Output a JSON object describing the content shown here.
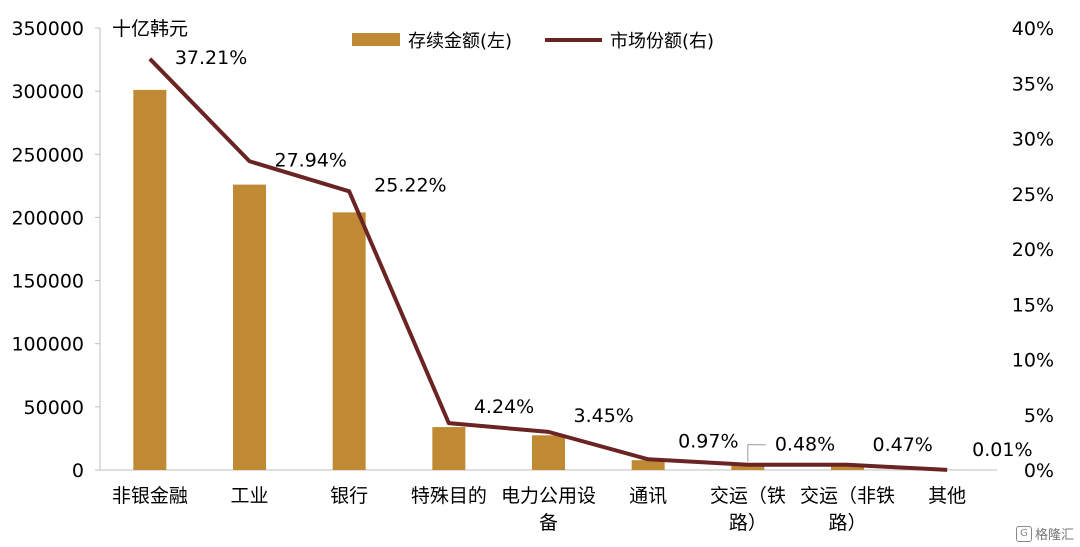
{
  "chart_data": {
    "type": "bar+line",
    "unit_label": "十亿韩元",
    "categories": [
      "非银金融",
      "工业",
      "银行",
      "特殊目的",
      "电力公用设备",
      "通讯",
      "交运（铁路）",
      "交运（非铁路）",
      "其他"
    ],
    "category_lines": [
      [
        "非银金融"
      ],
      [
        "工业"
      ],
      [
        "银行"
      ],
      [
        "特殊目的"
      ],
      [
        "电力公用设",
        "备"
      ],
      [
        "通讯"
      ],
      [
        "交运（铁",
        "路）"
      ],
      [
        "交运（非铁",
        "路）"
      ],
      [
        "其他"
      ]
    ],
    "series": [
      {
        "name": "存续金额(左)",
        "type": "bar",
        "axis": "left",
        "color": "#C08A35",
        "values": [
          301000,
          226000,
          204000,
          34000,
          27500,
          7800,
          3800,
          3700,
          100
        ]
      },
      {
        "name": "市场份额(右)",
        "type": "line",
        "axis": "right",
        "color": "#6B2424",
        "values": [
          0.3721,
          0.2794,
          0.2522,
          0.0424,
          0.0345,
          0.0097,
          0.0048,
          0.0047,
          0.0001
        ]
      }
    ],
    "data_labels": [
      "37.21%",
      "27.94%",
      "25.22%",
      "4.24%",
      "3.45%",
      "0.97%",
      "0.48%",
      "0.47%",
      "0.01%"
    ],
    "y_left": {
      "min": 0,
      "max": 350000,
      "ticks": [
        "0",
        "50000",
        "100000",
        "150000",
        "200000",
        "250000",
        "300000",
        "350000"
      ]
    },
    "y_right": {
      "min": 0,
      "max": 0.4,
      "ticks": [
        "0%",
        "5%",
        "10%",
        "15%",
        "20%",
        "25%",
        "30%",
        "35%",
        "40%"
      ]
    },
    "legend_position": "top-center",
    "grid": false
  },
  "watermark": {
    "text": "格隆汇",
    "logo": "G"
  }
}
